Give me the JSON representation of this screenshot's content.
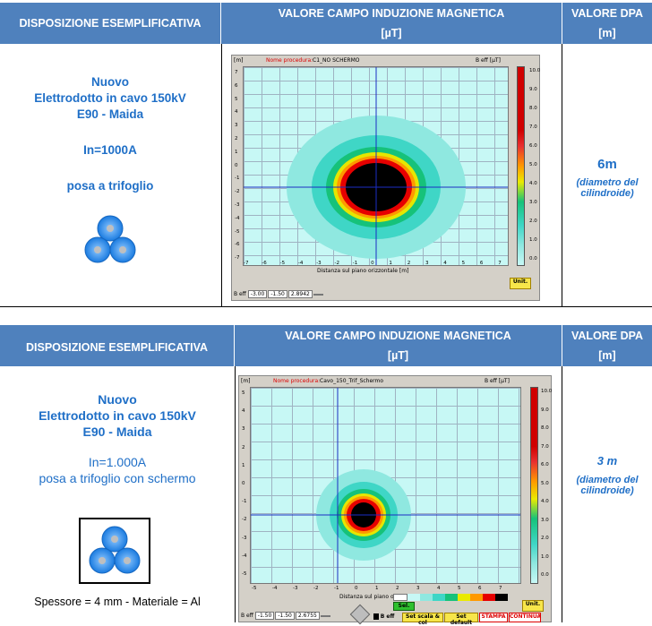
{
  "section1": {
    "header": {
      "arrangement": "DISPOSIZIONE ESEMPLIFICATIVA",
      "field_line1": "VALORE CAMPO INDUZIONE MAGNETICA",
      "field_line2": "[µT]",
      "dpa_line1": "VALORE DPA",
      "dpa_line2": "[m]"
    },
    "description": {
      "title1": "Nuovo",
      "title2": "Elettrodotto in cavo 150kV",
      "title3": "E90 - Maida",
      "current": "In=1000A",
      "laying": "posa a trifoglio"
    },
    "dpa": {
      "value": "6m",
      "note1": "(diametro del",
      "note2": "cilindroide)"
    },
    "sim": {
      "y_unit": "[m]",
      "proc_label": "Nome procedura:",
      "proc_name": "C1_NO SCHERMO",
      "b_label": "B eff [µT]",
      "x_axis_label": "Distanza sul piano orizzontale [m]",
      "unit_btn": "Unit.",
      "beff": "B eff",
      "val1": "-3.00",
      "val2": "-1.50",
      "val3": "2.8942",
      "y_ticks": [
        "7",
        "6",
        "5",
        "4",
        "3",
        "2",
        "1",
        "0",
        "-1",
        "-2",
        "-3",
        "-4",
        "-5",
        "-6",
        "-7"
      ],
      "x_ticks": [
        "-7",
        "-6",
        "-5",
        "-4",
        "-3",
        "-2",
        "-1",
        "0",
        "1",
        "2",
        "3",
        "4",
        "5",
        "6",
        "7"
      ],
      "scale": [
        "10.0",
        "9.0",
        "8.0",
        "7.0",
        "6.0",
        "5.0",
        "4.0",
        "3.0",
        "2.0",
        "1.0",
        "0.0"
      ]
    }
  },
  "section2": {
    "header": {
      "arrangement": "DISPOSIZIONE ESEMPLIFICATIVA",
      "field_line1": "VALORE CAMPO INDUZIONE MAGNETICA",
      "field_line2": "[µT]",
      "dpa_line1": "VALORE DPA",
      "dpa_line2": "[m]"
    },
    "description": {
      "title1": "Nuovo",
      "title2": "Elettrodotto in cavo 150kV",
      "title3": "E90 - Maida",
      "current": "In=1.000A",
      "laying": "posa a trifoglio con schermo",
      "shield": "Spessore = 4 mm - Materiale = Al"
    },
    "dpa": {
      "value": "3 m",
      "note1": "(diametro del",
      "note2": "cilindroide)"
    },
    "sim": {
      "y_unit": "[m]",
      "proc_label": "Nome procedura:",
      "proc_name": "Cavo_150_Trif_Schermo",
      "b_label": "B eff [µT]",
      "x_axis_label": "Distanza sul piano orizzontale [m]",
      "unit_btn": "Unit.",
      "beff": "B eff",
      "val1": "-1.50",
      "val2": "-1.50",
      "val3": "2.6755",
      "sel": "Sel.",
      "beff2": "B eff",
      "set_scale": "Set scala & col",
      "set_default": "Set default",
      "print": "STAMPA",
      "continue": "CONTINUA",
      "y_ticks": [
        "5",
        "4",
        "3",
        "2",
        "1",
        "0",
        "-1",
        "-2",
        "-3",
        "-4",
        "-5"
      ],
      "x_ticks": [
        "-5",
        "-4",
        "-3",
        "-2",
        "-1",
        "0",
        "1",
        "2",
        "3",
        "4",
        "5",
        "6",
        "7"
      ],
      "scale": [
        "10.0",
        "9.0",
        "8.0",
        "7.0",
        "6.0",
        "5.0",
        "4.0",
        "3.0",
        "2.0",
        "1.0",
        "0.0"
      ]
    }
  }
}
